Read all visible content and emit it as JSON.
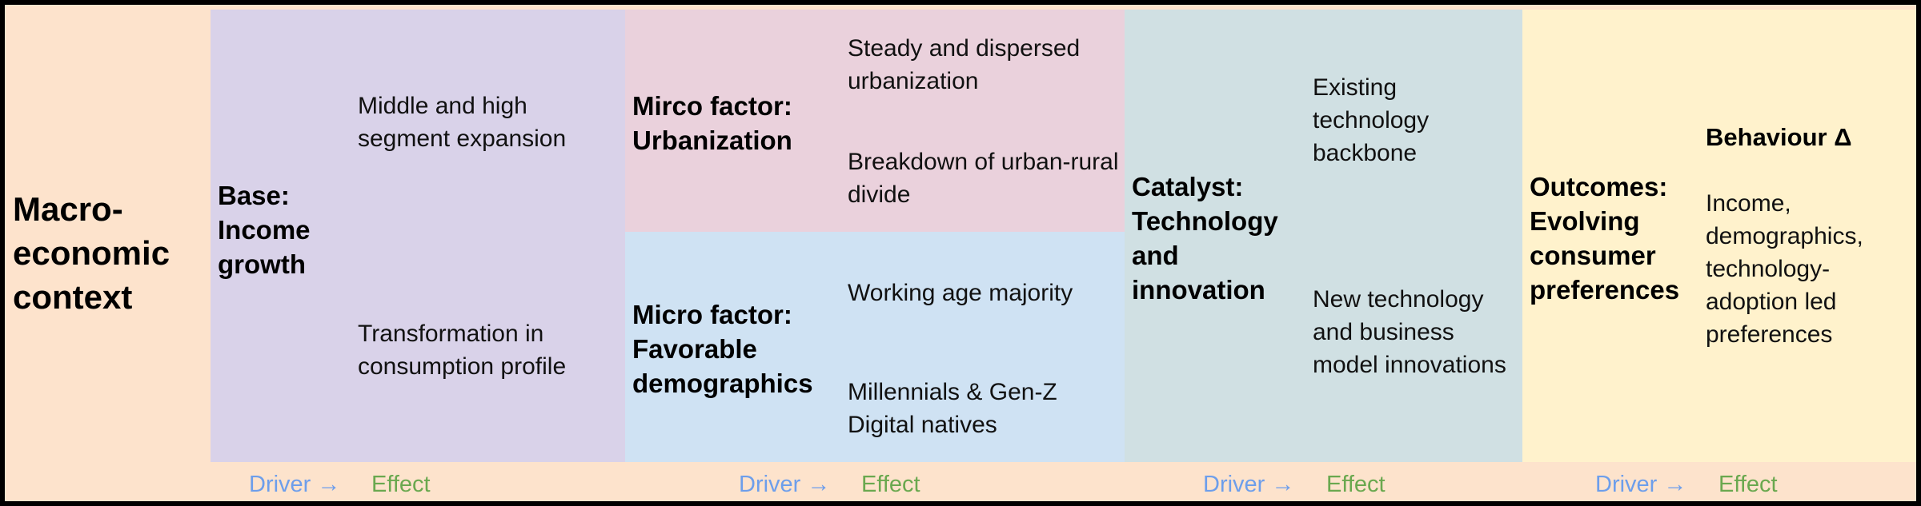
{
  "macro": {
    "title": "Macro-economic context"
  },
  "base": {
    "heading": "Base: Income growth",
    "items": [
      "Middle and high segment expansion",
      "Transformation in consumption profile"
    ]
  },
  "urbanization": {
    "heading": "Mirco factor: Urbanization",
    "items": [
      "Steady and dispersed urbanization",
      "Breakdown of urban-rural divide"
    ]
  },
  "demographics": {
    "heading": "Micro factor: Favorable demographics",
    "items": [
      "Working age majority",
      "Millennials & Gen-Z Digital natives"
    ]
  },
  "catalyst": {
    "heading": "Catalyst: Technology and innovation",
    "items": [
      "Existing technology backbone",
      "New technology and business model innovations"
    ]
  },
  "outcomes": {
    "heading": "Outcomes: Evolving consumer preferences",
    "subheading": "Behaviour Δ",
    "items": [
      "Income, demographics, technology-adoption led preferences"
    ]
  },
  "footer": [
    {
      "driver": "Driver →",
      "effect": "Effect"
    },
    {
      "driver": "Driver →",
      "effect": "Effect"
    },
    {
      "driver": "Driver →",
      "effect": "Effect"
    },
    {
      "driver": "Driver →",
      "effect": "Effect"
    }
  ]
}
